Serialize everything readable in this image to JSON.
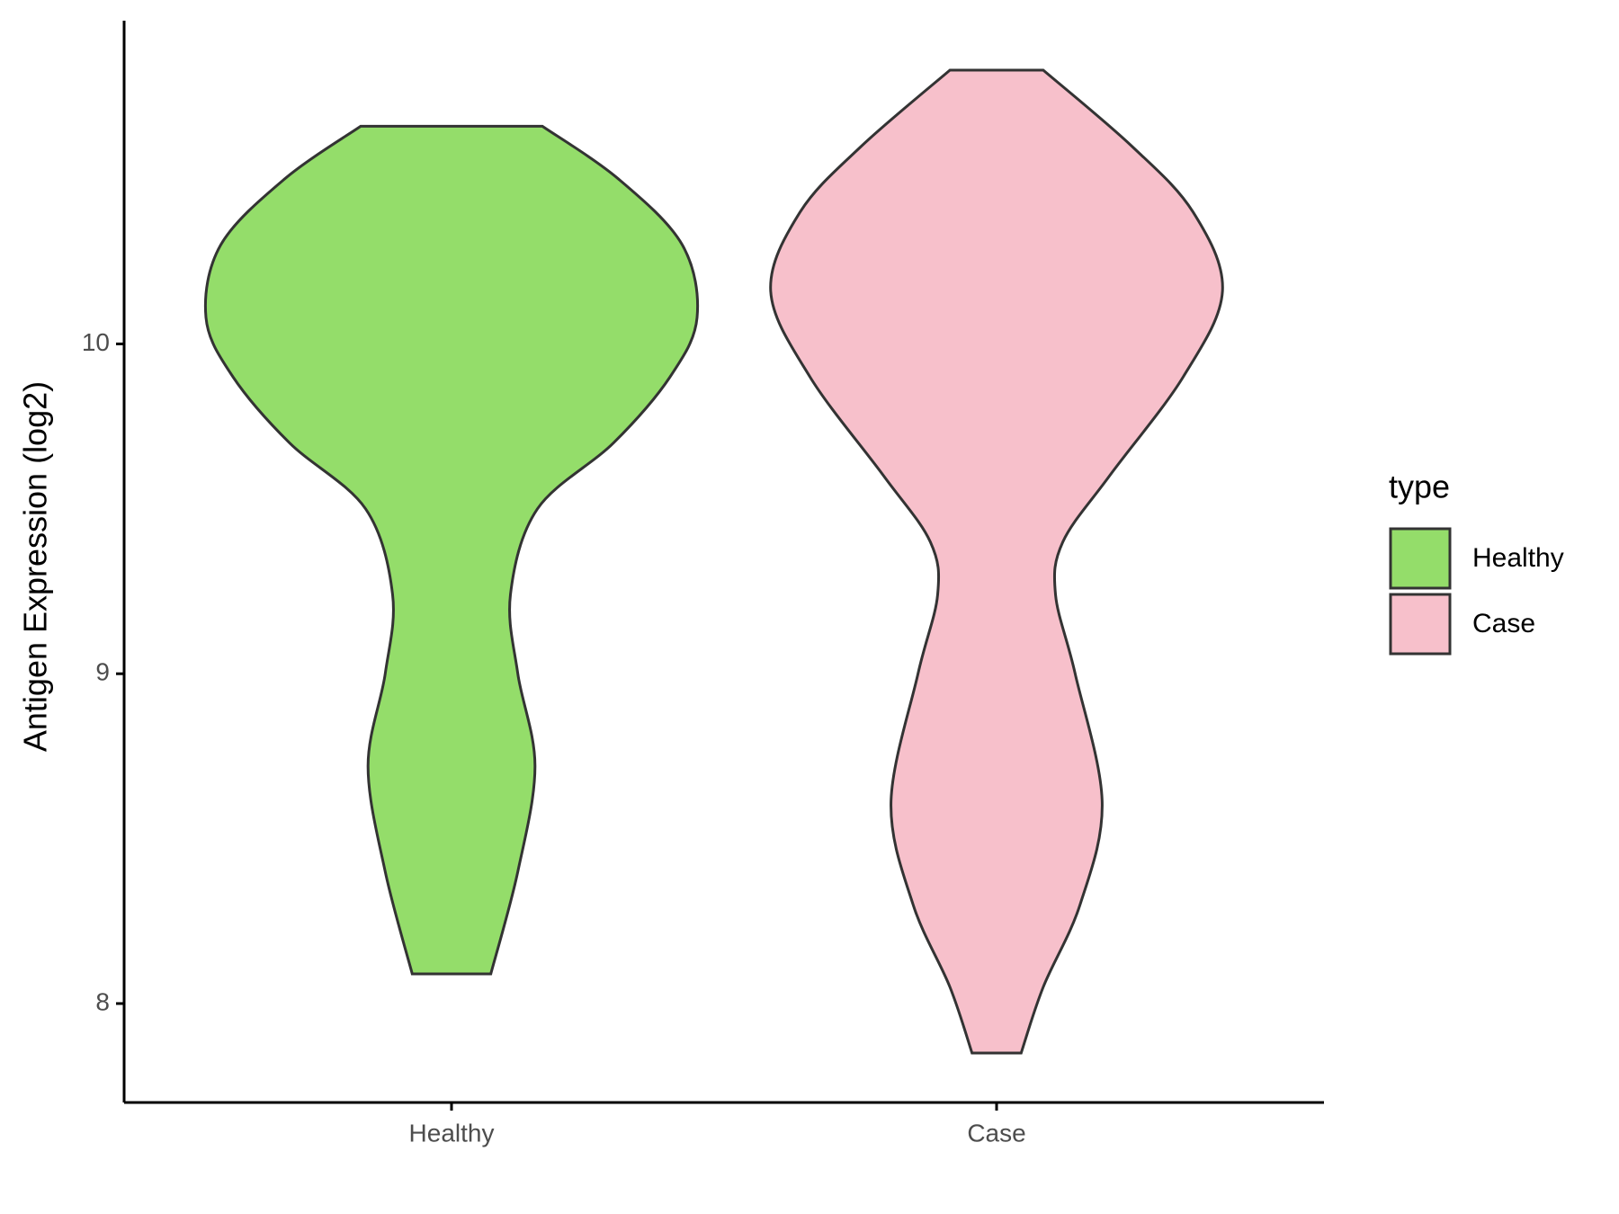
{
  "chart_data": {
    "type": "violin",
    "y_label": "Antigen Expression (log2)",
    "legend_title": "type",
    "ylim": [
      7.7,
      10.98
    ],
    "yticks": [
      8,
      9,
      10
    ],
    "categories": [
      "Healthy",
      "Case"
    ],
    "series": [
      {
        "name": "Healthy",
        "color": "#94dd6a",
        "y": [
          10.66,
          10.5,
          10.3,
          10.08,
          9.9,
          9.7,
          9.5,
          9.24,
          9.0,
          8.72,
          8.4,
          8.09
        ],
        "density": [
          0.37,
          0.68,
          0.94,
          1.0,
          0.89,
          0.66,
          0.35,
          0.24,
          0.27,
          0.34,
          0.27,
          0.16
        ]
      },
      {
        "name": "Case",
        "color": "#f7c0cb",
        "y": [
          10.83,
          10.6,
          10.4,
          10.16,
          9.9,
          9.6,
          9.4,
          9.24,
          9.0,
          8.61,
          8.3,
          8.05,
          7.85
        ],
        "density": [
          0.19,
          0.55,
          0.8,
          0.92,
          0.76,
          0.46,
          0.27,
          0.24,
          0.32,
          0.43,
          0.34,
          0.19,
          0.1
        ]
      }
    ]
  }
}
